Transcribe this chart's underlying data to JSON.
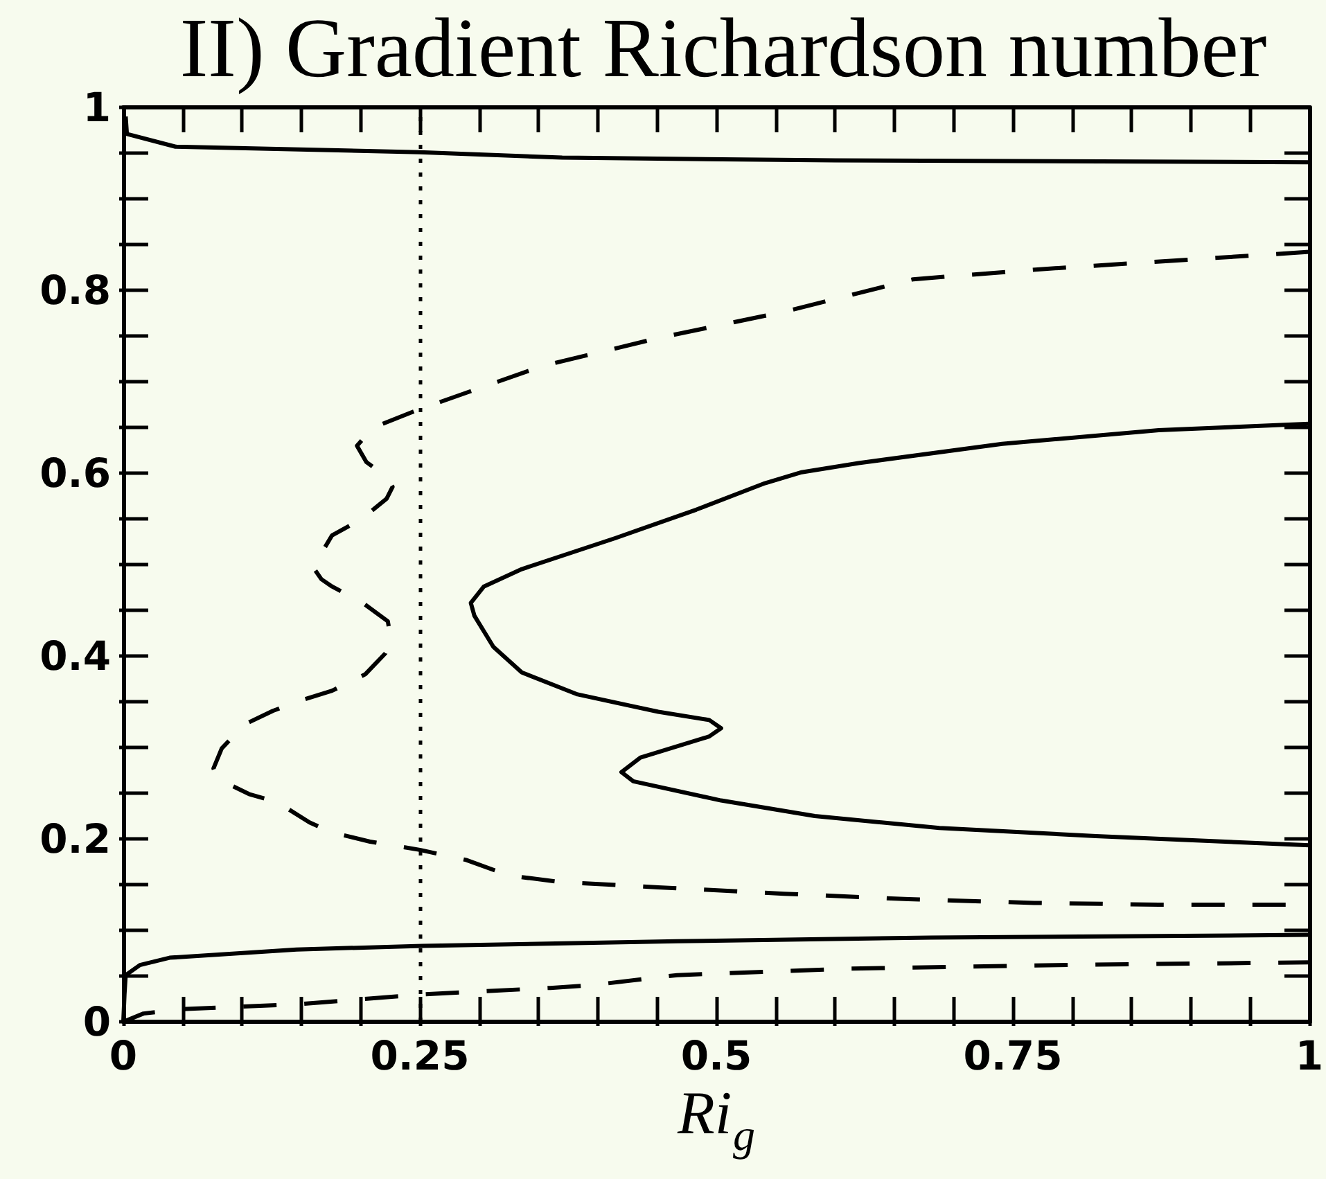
{
  "chart_data": {
    "type": "line",
    "title": "II) Gradient Richardson number",
    "xlabel": "Ri$_{g}$",
    "xlim": [
      0,
      1
    ],
    "ylim": [
      0,
      1
    ],
    "xticks": [
      0,
      {
        "value": 0.05,
        "label": null
      },
      {
        "value": 0.1,
        "label": null
      },
      {
        "value": 0.15,
        "label": null
      },
      {
        "value": 0.2,
        "label": null
      },
      0.25,
      {
        "value": 0.3,
        "label": null
      },
      {
        "value": 0.35,
        "label": null
      },
      {
        "value": 0.4,
        "label": null
      },
      {
        "value": 0.45,
        "label": null
      },
      0.5,
      {
        "value": 0.55,
        "label": null
      },
      {
        "value": 0.6,
        "label": null
      },
      {
        "value": 0.65,
        "label": null
      },
      {
        "value": 0.7,
        "label": null
      },
      0.75,
      {
        "value": 0.8,
        "label": null
      },
      {
        "value": 0.85,
        "label": null
      },
      {
        "value": 0.9,
        "label": null
      },
      {
        "value": 0.95,
        "label": null
      },
      1
    ],
    "yticks": [
      0,
      {
        "value": 0.05,
        "label": null
      },
      {
        "value": 0.1,
        "label": null
      },
      {
        "value": 0.15,
        "label": null
      },
      0.2,
      {
        "value": 0.25,
        "label": null
      },
      {
        "value": 0.3,
        "label": null
      },
      {
        "value": 0.35,
        "label": null
      },
      0.4,
      {
        "value": 0.45,
        "label": null
      },
      {
        "value": 0.5,
        "label": null
      },
      {
        "value": 0.55,
        "label": null
      },
      0.6,
      {
        "value": 0.65,
        "label": null
      },
      {
        "value": 0.7,
        "label": null
      },
      {
        "value": 0.75,
        "label": null
      },
      0.8,
      {
        "value": 0.85,
        "label": null
      },
      {
        "value": 0.9,
        "label": null
      },
      {
        "value": 0.95,
        "label": null
      },
      1
    ],
    "grid": false,
    "marker": "none",
    "series": [
      {
        "color": "#000000",
        "line_style": "solid",
        "x": [
          0.002,
          0.003,
          0.044,
          0.25,
          0.37,
          0.6,
          1.0
        ],
        "values": [
          0.99,
          0.971,
          0.957,
          0.951,
          0.945,
          0.942,
          0.94
        ]
      },
      {
        "color": "#000000",
        "line_style": "dashed",
        "x": [
          1.0,
          0.773,
          0.666,
          0.559,
          0.452,
          0.353,
          0.25,
          0.211,
          0.197,
          0.205,
          0.22,
          0.227,
          0.222,
          0.2,
          0.176,
          0.16,
          0.167,
          0.176,
          0.202,
          0.223,
          0.225,
          0.221,
          0.204,
          0.176,
          0.151,
          0.126,
          0.102,
          0.083,
          0.076,
          0.079,
          0.106,
          0.13,
          0.157,
          0.176,
          0.208,
          0.25,
          0.289,
          0.325,
          0.367,
          0.451,
          0.557,
          0.662,
          0.768,
          0.873,
          1.0
        ],
        "values": [
          0.842,
          0.823,
          0.812,
          0.777,
          0.748,
          0.717,
          0.67,
          0.65,
          0.63,
          0.612,
          0.598,
          0.585,
          0.572,
          0.549,
          0.532,
          0.497,
          0.484,
          0.476,
          0.458,
          0.438,
          0.423,
          0.403,
          0.38,
          0.362,
          0.352,
          0.34,
          0.325,
          0.299,
          0.277,
          0.266,
          0.249,
          0.24,
          0.218,
          0.207,
          0.197,
          0.188,
          0.177,
          0.16,
          0.153,
          0.147,
          0.14,
          0.134,
          0.13,
          0.128,
          0.128
        ]
      },
      {
        "color": "#000000",
        "line_style": "solid",
        "x": [
          1.0,
          0.873,
          0.741,
          0.62,
          0.572,
          0.541,
          0.483,
          0.415,
          0.336,
          0.304,
          0.293,
          0.296,
          0.312,
          0.336,
          0.383,
          0.451,
          0.494,
          0.504,
          0.494,
          0.436,
          0.42,
          0.43,
          0.504,
          0.583,
          0.688,
          0.82,
          1.0
        ],
        "values": [
          0.654,
          0.647,
          0.632,
          0.611,
          0.601,
          0.589,
          0.56,
          0.529,
          0.495,
          0.476,
          0.458,
          0.444,
          0.41,
          0.382,
          0.358,
          0.339,
          0.33,
          0.321,
          0.312,
          0.289,
          0.273,
          0.263,
          0.242,
          0.225,
          0.212,
          0.203,
          0.193
        ]
      },
      {
        "color": "#000000",
        "line_style": "solid",
        "x": [
          0,
          0.001,
          0.002,
          0.014,
          0.039,
          0.146,
          0.252,
          0.467,
          0.681,
          1.0
        ],
        "values": [
          0,
          0.03,
          0.051,
          0.062,
          0.07,
          0.079,
          0.083,
          0.088,
          0.092,
          0.095
        ]
      },
      {
        "color": "#000000",
        "line_style": "dashed",
        "x": [
          0,
          0.017,
          0.053,
          0.146,
          0.253,
          0.36,
          0.395,
          0.467,
          0.609,
          0.787,
          1.0
        ],
        "values": [
          0,
          0.009,
          0.014,
          0.019,
          0.03,
          0.037,
          0.04,
          0.051,
          0.058,
          0.062,
          0.065
        ]
      }
    ],
    "ref_lines": [
      {
        "axis": "x",
        "value": 0.25,
        "line_style": "dotted",
        "color": "#000000"
      }
    ]
  }
}
